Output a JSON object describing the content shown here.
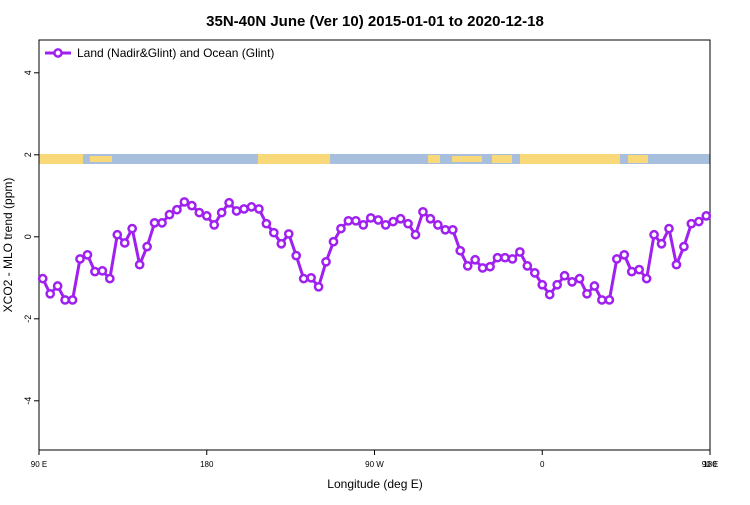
{
  "chart_data": {
    "type": "line",
    "title": "35N-40N June (Ver 10)   2015-01-01 to 2020-12-18",
    "x_label": "Longitude (deg E)",
    "y_label": "XCO2 - MLO trend (ppm)",
    "xlim": [
      90,
      450
    ],
    "ylim": [
      -5.2,
      4.8
    ],
    "xticks": [
      {
        "value": 90,
        "label": "90 E"
      },
      {
        "value": 180,
        "label": "180"
      },
      {
        "value": 270,
        "label": "90 W"
      },
      {
        "value": 360,
        "label": "0"
      },
      {
        "value": 450,
        "label": "90 E"
      },
      {
        "value": 540,
        "label": "180"
      }
    ],
    "yticks": [
      4,
      2,
      0,
      -2,
      -4
    ],
    "legend": "top-left",
    "x": [
      92,
      96,
      100,
      104,
      108,
      112,
      116,
      120,
      124,
      128,
      132,
      136,
      140,
      144,
      148,
      152,
      156,
      160,
      164,
      168,
      172,
      176,
      180,
      184,
      188,
      192,
      196,
      200,
      204,
      208,
      212,
      216,
      220,
      224,
      228,
      232,
      236,
      240,
      244,
      248,
      252,
      256,
      260,
      264,
      268,
      272,
      276,
      280,
      284,
      288,
      292,
      296,
      300,
      304,
      308,
      312,
      316,
      320,
      324,
      328,
      332,
      336,
      340,
      344,
      348,
      352,
      356,
      360,
      364,
      368,
      372,
      376,
      380,
      384,
      388,
      392,
      396,
      400,
      404,
      408,
      412,
      416,
      420,
      424,
      428,
      432,
      436,
      440,
      444,
      448
    ],
    "series": [
      {
        "name": "Land (Nadir&Glint) and Ocean (Glint)",
        "color": "#a020f0",
        "values": [
          -1.02,
          -1.39,
          -1.2,
          -1.54,
          -1.54,
          -0.54,
          -0.44,
          -0.85,
          -0.83,
          -1.02,
          0.05,
          -0.15,
          0.2,
          -0.68,
          -0.24,
          0.34,
          0.34,
          0.54,
          0.66,
          0.85,
          0.76,
          0.59,
          0.51,
          0.29,
          0.59,
          0.83,
          0.63,
          0.68,
          0.73,
          0.68,
          0.32,
          0.1,
          -0.17,
          0.07,
          -0.46,
          -1.02,
          -1.0,
          -1.22,
          -0.61,
          -0.12,
          0.2,
          0.39,
          0.39,
          0.29,
          0.46,
          0.41,
          0.29,
          0.37,
          0.44,
          0.32,
          0.05,
          0.61,
          0.44,
          0.29,
          0.17,
          0.17,
          -0.34,
          -0.71,
          -0.56,
          -0.76,
          -0.73,
          -0.51,
          -0.51,
          -0.54,
          -0.37,
          -0.71,
          -0.88,
          -1.17,
          -1.41,
          -1.17,
          -0.95,
          -1.1,
          -1.02,
          -1.39,
          -1.2,
          -1.54,
          -1.54,
          -0.54,
          -0.44,
          -0.85,
          -0.8,
          -1.02,
          0.05,
          -0.17,
          0.2,
          -0.68,
          -0.24,
          0.32,
          0.37,
          0.51
        ]
      }
    ]
  }
}
